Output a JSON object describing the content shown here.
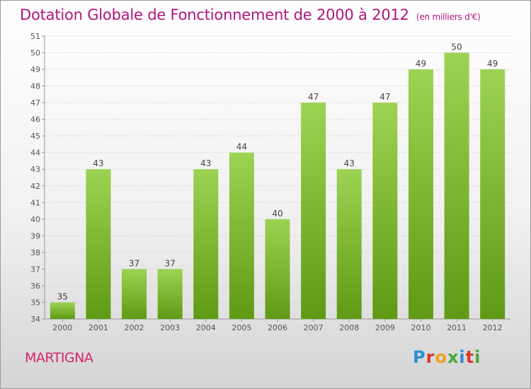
{
  "header": {
    "title": "Dotation Globale de Fonctionnement de 2000 à 2012",
    "unit": "(en milliers d'€)"
  },
  "commune": "MARTIGNA",
  "logo": {
    "letters": [
      "P",
      "r",
      "o",
      "x",
      "i",
      "t",
      "i"
    ],
    "colors": [
      "#2a8fd8",
      "#d63a2a",
      "#f0a020",
      "#48a838",
      "#2a8fd8",
      "#d63a2a",
      "#48a838"
    ]
  },
  "colors": {
    "title": "#b0157c",
    "commune": "#d6246e",
    "bar_top": "#9dd353",
    "bar_bottom": "#5f9a14",
    "axis": "#999999"
  },
  "chart_data": {
    "type": "bar",
    "title": "Dotation Globale de Fonctionnement de 2000 à 2012",
    "ylabel": "(en milliers d'€)",
    "categories": [
      "2000",
      "2001",
      "2002",
      "2003",
      "2004",
      "2005",
      "2006",
      "2007",
      "2008",
      "2009",
      "2010",
      "2011",
      "2012"
    ],
    "values": [
      35,
      43,
      37,
      37,
      43,
      44,
      40,
      47,
      43,
      47,
      49,
      50,
      49
    ],
    "ylim": [
      34,
      51
    ],
    "yticks": [
      34,
      35,
      36,
      37,
      38,
      39,
      40,
      41,
      42,
      43,
      44,
      45,
      46,
      47,
      48,
      49,
      50,
      51
    ],
    "grid": true
  }
}
